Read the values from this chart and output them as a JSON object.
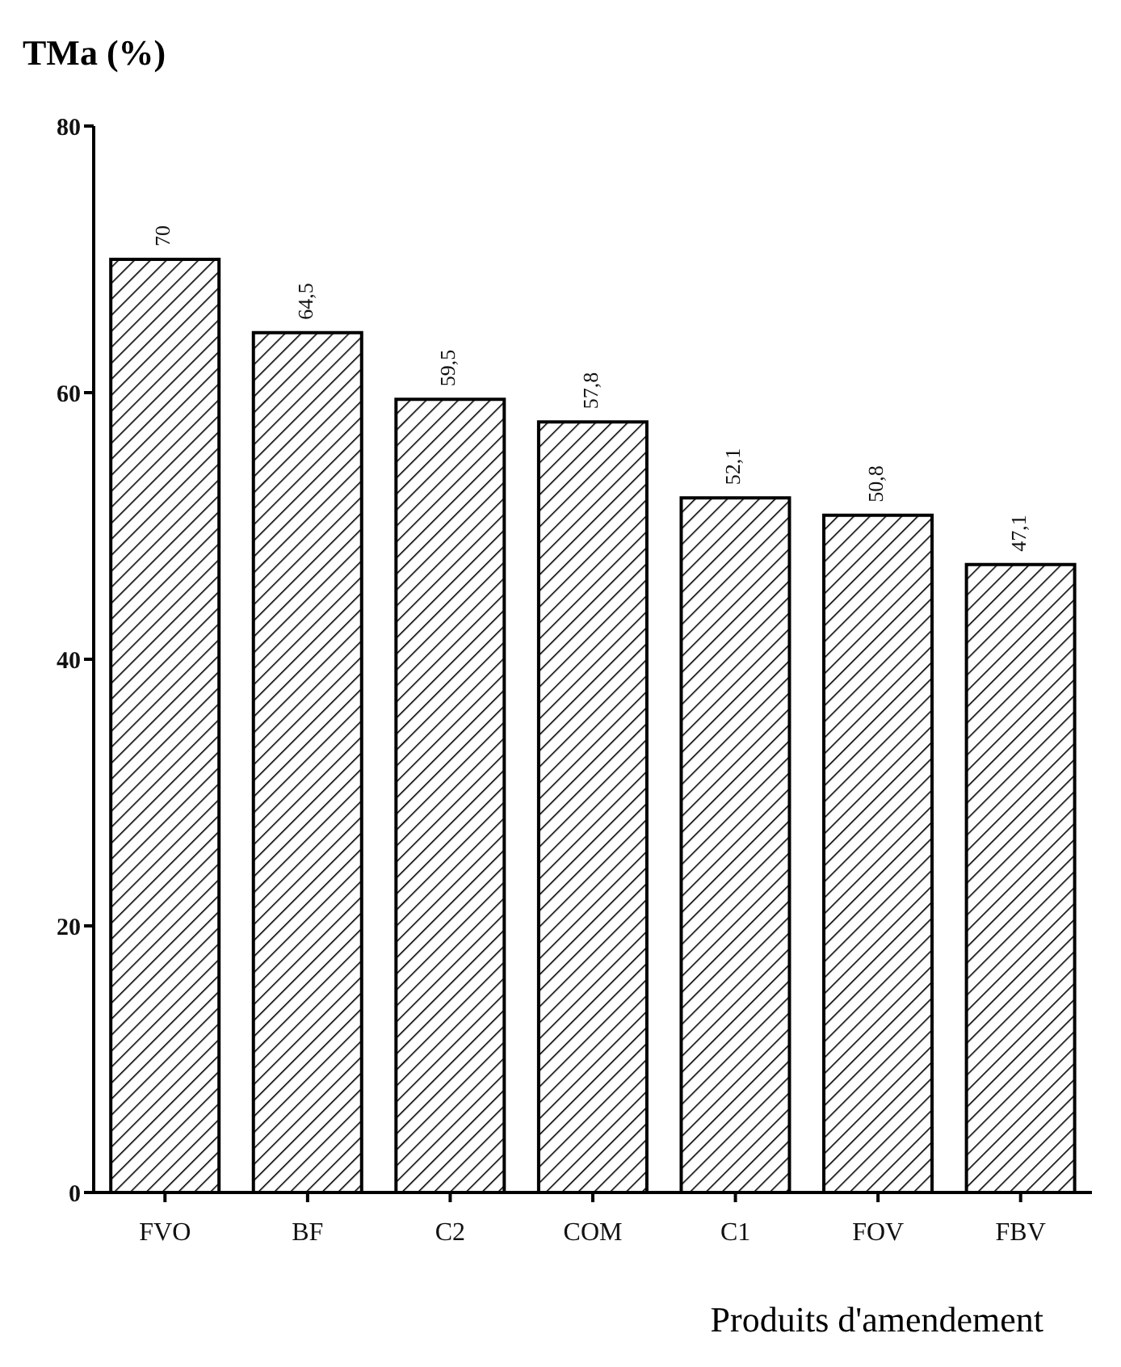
{
  "chart_data": {
    "type": "bar",
    "ylabel": "TMa (%)",
    "xlabel": "Produits d'amendement",
    "categories": [
      "FVO",
      "BF",
      "C2",
      "COM",
      "C1",
      "FOV",
      "FBV"
    ],
    "values": [
      70,
      64.5,
      59.5,
      57.8,
      52.1,
      50.8,
      47.1
    ],
    "value_labels": [
      "70",
      "64,5",
      "59,5",
      "57,8",
      "52,1",
      "50,8",
      "47,1"
    ],
    "color": "#000000",
    "ylim": [
      0,
      80
    ],
    "yticks": [
      0,
      20,
      40,
      60,
      80
    ],
    "grid": false
  }
}
